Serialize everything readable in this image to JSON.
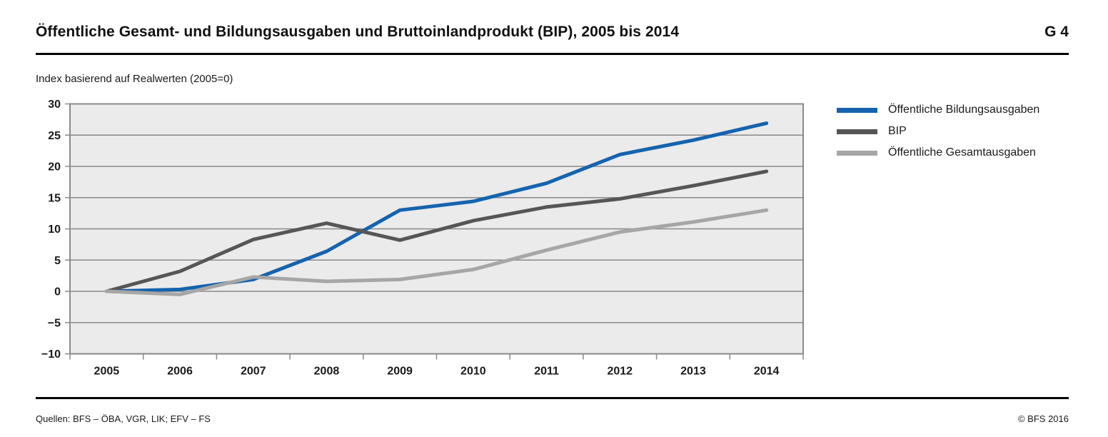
{
  "header": {
    "title": "Öffentliche Gesamt- und Bildungsausgaben und Bruttoinlandprodukt (BIP), 2005 bis 2014",
    "graph_id": "G 4"
  },
  "subtitle": "Index basierend auf Realwerten (2005=0)",
  "footer": {
    "sources": "Quellen: BFS – ÖBA, VGR, LIK; EFV – FS",
    "copyright": "© BFS 2016"
  },
  "colors": {
    "accent_blue": "#1563AE",
    "dark_gray": "#565656",
    "light_gray": "#A6A6A6",
    "plot_background": "#EBEBEB",
    "grid_line": "#8A8A8A",
    "rule_black": "#000000"
  },
  "chart_data": {
    "type": "line",
    "title": "Öffentliche Gesamt- und Bildungsausgaben und Bruttoinlandprodukt (BIP), 2005 bis 2014",
    "subtitle": "Index basierend auf Realwerten (2005=0)",
    "categories": [
      "2005",
      "2006",
      "2007",
      "2008",
      "2009",
      "2010",
      "2011",
      "2012",
      "2013",
      "2014"
    ],
    "series": [
      {
        "name": "Öffentliche Bildungsausgaben",
        "color": "#1563AE",
        "values": [
          0,
          0.3,
          1.9,
          6.4,
          13.0,
          14.4,
          17.3,
          21.9,
          24.2,
          26.9
        ]
      },
      {
        "name": "BIP",
        "color": "#565656",
        "values": [
          0,
          3.2,
          8.3,
          10.9,
          8.2,
          11.3,
          13.5,
          14.8,
          16.9,
          19.2
        ]
      },
      {
        "name": "Öffentliche Gesamtausgaben",
        "color": "#A6A6A6",
        "values": [
          0,
          -0.5,
          2.3,
          1.6,
          1.9,
          3.5,
          6.6,
          9.5,
          11.1,
          13.0
        ]
      }
    ],
    "xlabel": "",
    "ylabel": "Index basierend auf Realwerten (2005=0)",
    "ylim": [
      -10,
      30
    ],
    "ytick_step": 5,
    "grid": true,
    "plot_bg": "#EBEBEB",
    "legend_position": "right"
  }
}
